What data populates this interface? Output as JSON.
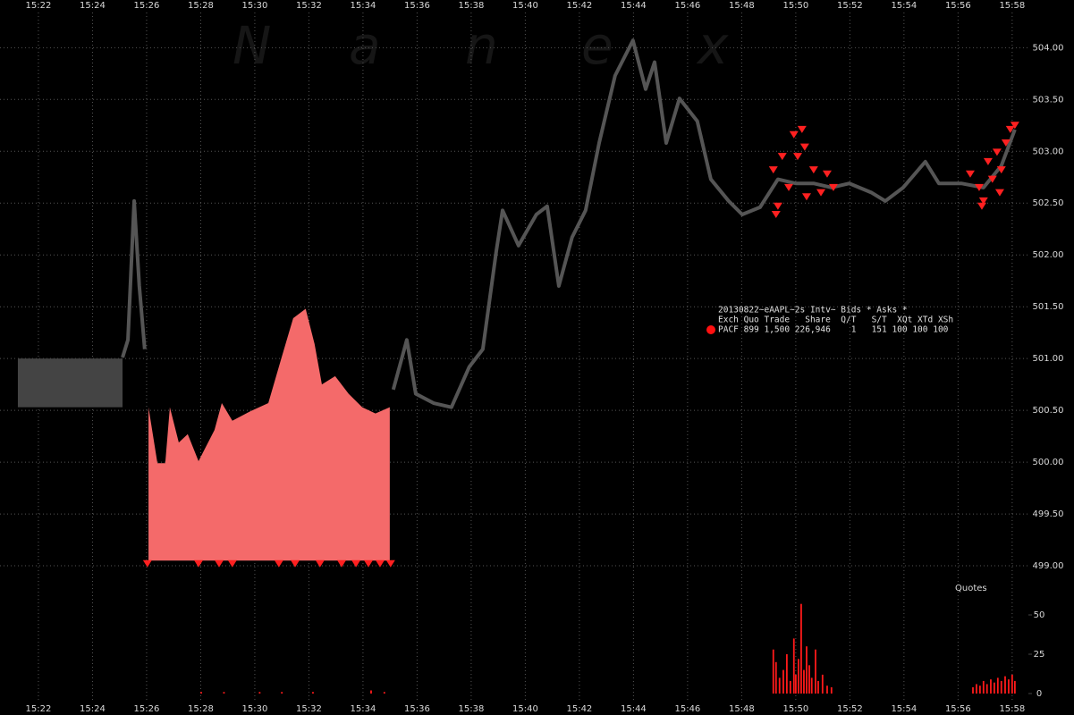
{
  "chart_data": [
    {
      "type": "line",
      "watermark": [
        "N",
        "a",
        "n",
        "e",
        "x"
      ],
      "legend_table": {
        "title": "20130822~eAAPL~2s Intv~ Bids * Asks *",
        "header": "Exch Quo Trade   Share  Q/T   S/T  XQt XTd XSh",
        "row": "PACF 899 1,500 226,946    1   151 100 100 100"
      },
      "xlim": [
        920.58,
        958.6
      ],
      "xticks": [
        {
          "value": 922,
          "label": "15:22"
        },
        {
          "value": 924,
          "label": "15:24"
        },
        {
          "value": 926,
          "label": "15:26"
        },
        {
          "value": 928,
          "label": "15:28"
        },
        {
          "value": 930,
          "label": "15:30"
        },
        {
          "value": 932,
          "label": "15:32"
        },
        {
          "value": 934,
          "label": "15:34"
        },
        {
          "value": 936,
          "label": "15:36"
        },
        {
          "value": 938,
          "label": "15:38"
        },
        {
          "value": 940,
          "label": "15:40"
        },
        {
          "value": 942,
          "label": "15:42"
        },
        {
          "value": 944,
          "label": "15:44"
        },
        {
          "value": 946,
          "label": "15:46"
        },
        {
          "value": 948,
          "label": "15:48"
        },
        {
          "value": 950,
          "label": "15:50"
        },
        {
          "value": 952,
          "label": "15:52"
        },
        {
          "value": 954,
          "label": "15:54"
        },
        {
          "value": 956,
          "label": "15:56"
        },
        {
          "value": 958,
          "label": "15:58"
        }
      ],
      "ylim": [
        498.94,
        504.46
      ],
      "yticks": [
        {
          "value": 499,
          "label": "499.00"
        },
        {
          "value": 499.5,
          "label": "499.50"
        },
        {
          "value": 500,
          "label": "500.00"
        },
        {
          "value": 500.5,
          "label": "500.50"
        },
        {
          "value": 501,
          "label": "501.00"
        },
        {
          "value": 501.5,
          "label": "501.50"
        },
        {
          "value": 502,
          "label": "502.00"
        },
        {
          "value": 502.5,
          "label": "502.50"
        },
        {
          "value": 503,
          "label": "503.00"
        },
        {
          "value": 503.5,
          "label": "503.50"
        },
        {
          "value": 504,
          "label": "504.00"
        }
      ],
      "grid": true,
      "series": [
        {
          "type": "box",
          "color": "#444444",
          "x": [
            921.24,
            925.11
          ],
          "values": [
            500.53,
            501.0
          ]
        },
        {
          "type": "line",
          "color": "#555555",
          "x": [
            925.11,
            925.31,
            925.54,
            925.73,
            925.93,
            null,
            935.12,
            935.62,
            935.95,
            936.61,
            937.27,
            937.93,
            938.43,
            938.93,
            939.16,
            939.75,
            940.41,
            940.81,
            941.24,
            941.73,
            942.23,
            942.73,
            943.32,
            943.98,
            944.45,
            944.78,
            945.21,
            945.7,
            946.36,
            946.86,
            947.52,
            948.02,
            948.68,
            949.34,
            950.0,
            950.66,
            951.32,
            951.98,
            952.81,
            953.31,
            953.97,
            954.79,
            955.29,
            956.12,
            956.94,
            957.6,
            958.1
          ],
          "values": [
            501.01,
            501.18,
            502.52,
            501.7,
            501.09,
            null,
            500.7,
            501.18,
            500.66,
            500.57,
            500.53,
            500.92,
            501.09,
            502.04,
            502.43,
            502.09,
            502.39,
            502.47,
            501.7,
            502.17,
            502.43,
            503.08,
            503.73,
            504.07,
            503.6,
            503.86,
            503.08,
            503.51,
            503.29,
            502.73,
            502.52,
            502.39,
            502.46,
            502.73,
            502.69,
            502.69,
            502.65,
            502.69,
            502.6,
            502.52,
            502.65,
            502.9,
            502.69,
            502.69,
            502.65,
            502.86,
            503.21
          ]
        },
        {
          "type": "area",
          "color": "#f46a6a",
          "base": 499.05,
          "x": [
            926.07,
            926.4,
            926.69,
            926.86,
            927.19,
            927.52,
            927.92,
            928.51,
            928.78,
            929.17,
            929.83,
            930.5,
            930.99,
            931.42,
            931.88,
            932.21,
            932.48,
            932.97,
            933.47,
            933.97,
            934.46,
            934.99
          ],
          "values": [
            500.53,
            499.99,
            499.99,
            500.53,
            500.19,
            500.27,
            500.01,
            500.31,
            500.57,
            500.4,
            500.49,
            500.57,
            501.01,
            501.39,
            501.48,
            501.14,
            500.75,
            500.83,
            500.66,
            500.53,
            500.47,
            500.53
          ]
        },
        {
          "type": "scatter",
          "color": "#ff2020",
          "x": [
            949.17,
            949.34,
            949.5,
            949.74,
            949.93,
            950.07,
            950.23,
            950.4,
            950.66,
            950.93,
            951.16,
            951.39,
            949.27,
            950.33,
            956.45,
            956.78,
            956.94,
            957.11,
            957.27,
            957.44,
            957.6,
            957.77,
            957.93,
            958.1,
            956.88,
            957.54,
            926.03,
            927.92,
            928.68,
            929.17,
            930.89,
            931.49,
            932.41,
            933.21,
            933.74,
            934.2,
            934.63,
            935.02
          ],
          "values": [
            502.82,
            502.47,
            502.95,
            502.65,
            503.16,
            502.95,
            503.21,
            502.56,
            502.82,
            502.6,
            502.78,
            502.65,
            502.39,
            503.04,
            502.78,
            502.65,
            502.52,
            502.9,
            502.73,
            502.99,
            502.82,
            503.08,
            503.21,
            503.25,
            502.47,
            502.6,
            499.02,
            499.02,
            499.02,
            499.02,
            499.02,
            499.02,
            499.02,
            499.02,
            499.02,
            499.02,
            499.02,
            499.02
          ]
        }
      ]
    },
    {
      "type": "bar",
      "label": "Quotes",
      "color": "#ff1a1a",
      "xlim": [
        920.58,
        958.6
      ],
      "ylim": [
        0,
        70
      ],
      "yticks": [
        0,
        25,
        50
      ],
      "x": [
        928.02,
        928.86,
        930.18,
        931.0,
        932.15,
        934.3,
        934.79,
        949.17,
        949.27,
        949.4,
        949.54,
        949.67,
        949.8,
        949.93,
        950.0,
        950.1,
        950.2,
        950.3,
        950.4,
        950.5,
        950.59,
        950.73,
        950.83,
        950.99,
        951.16,
        951.32,
        956.55,
        956.68,
        956.81,
        956.94,
        957.07,
        957.21,
        957.34,
        957.47,
        957.6,
        957.74,
        957.87,
        958.0,
        958.1
      ],
      "values": [
        1,
        1,
        1,
        1,
        1,
        2,
        1,
        28,
        20,
        10,
        15,
        25,
        8,
        35,
        12,
        22,
        57,
        15,
        30,
        18,
        10,
        28,
        8,
        12,
        5,
        4,
        4,
        6,
        5,
        8,
        6,
        9,
        7,
        10,
        8,
        11,
        9,
        12,
        8
      ]
    }
  ]
}
